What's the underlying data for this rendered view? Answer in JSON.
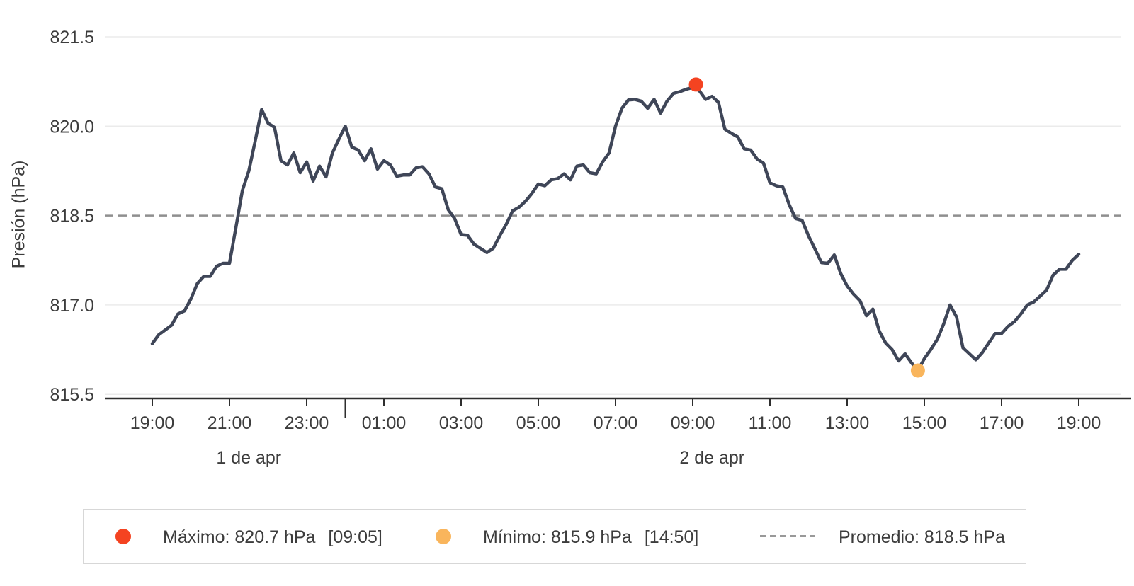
{
  "chart_data": {
    "type": "line",
    "title": "",
    "xlabel": "",
    "ylabel": "Presión (hPa)",
    "ylim": [
      815.5,
      821.5
    ],
    "yticks": [
      "821.5",
      "820.0",
      "818.5",
      "817.0",
      "815.5"
    ],
    "grid": true,
    "legend_position": "bottom",
    "xticks": [
      {
        "minute": 0,
        "label": "19:00"
      },
      {
        "minute": 120,
        "label": "21:00"
      },
      {
        "minute": 240,
        "label": "23:00"
      },
      {
        "minute": 360,
        "label": "01:00"
      },
      {
        "minute": 480,
        "label": "03:00"
      },
      {
        "minute": 600,
        "label": "05:00"
      },
      {
        "minute": 720,
        "label": "07:00"
      },
      {
        "minute": 840,
        "label": "09:00"
      },
      {
        "minute": 960,
        "label": "11:00"
      },
      {
        "minute": 1080,
        "label": "13:00"
      },
      {
        "minute": 1200,
        "label": "15:00"
      },
      {
        "minute": 1320,
        "label": "17:00"
      },
      {
        "minute": 1440,
        "label": "19:00"
      }
    ],
    "day_separator_minute": 300,
    "day_labels": [
      {
        "label": "1 de apr",
        "center_minute": 150
      },
      {
        "label": "2 de apr",
        "center_minute": 870
      }
    ],
    "series": {
      "name": "Presión",
      "start_time": "19:00",
      "interval_minutes": 10,
      "values": [
        816.35,
        816.5,
        816.58,
        816.66,
        816.85,
        816.9,
        817.1,
        817.36,
        817.48,
        817.48,
        817.65,
        817.7,
        817.7,
        818.3,
        818.92,
        819.25,
        819.75,
        820.28,
        820.05,
        819.98,
        819.42,
        819.35,
        819.55,
        819.22,
        819.4,
        819.08,
        819.33,
        819.15,
        819.55,
        819.78,
        820.0,
        819.65,
        819.6,
        819.42,
        819.62,
        819.28,
        819.42,
        819.35,
        819.16,
        819.18,
        819.18,
        819.3,
        819.32,
        819.2,
        818.98,
        818.95,
        818.6,
        818.45,
        818.18,
        818.17,
        818.02,
        817.95,
        817.88,
        817.95,
        818.16,
        818.35,
        818.58,
        818.64,
        818.74,
        818.87,
        819.03,
        819.0,
        819.1,
        819.12,
        819.2,
        819.1,
        819.33,
        819.35,
        819.22,
        819.2,
        819.4,
        819.55,
        820.0,
        820.3,
        820.44,
        820.45,
        820.42,
        820.3,
        820.45,
        820.22,
        820.42,
        820.55,
        820.58,
        820.62,
        820.65,
        820.6,
        820.45,
        820.5,
        820.4,
        819.95,
        819.88,
        819.82,
        819.62,
        819.6,
        819.45,
        819.38,
        819.05,
        819.0,
        818.98,
        818.68,
        818.45,
        818.42,
        818.16,
        817.94,
        817.71,
        817.7,
        817.84,
        817.53,
        817.32,
        817.18,
        817.07,
        816.82,
        816.93,
        816.56,
        816.36,
        816.25,
        816.06,
        816.18,
        816.03,
        815.9,
        816.1,
        816.25,
        816.42,
        816.68,
        817.0,
        816.8,
        816.28,
        816.18,
        816.08,
        816.2,
        816.36,
        816.52,
        816.52,
        816.64,
        816.72,
        816.85,
        817.0,
        817.05,
        817.15,
        817.25,
        817.5,
        817.6,
        817.6,
        817.75,
        817.85
      ]
    },
    "average": {
      "value": 818.5,
      "legend_label": "Promedio: 818.5 hPa"
    },
    "max": {
      "value": 820.7,
      "time": "09:05",
      "minute": 845,
      "legend_label": "Máximo: 820.7 hPa",
      "time_label": "[09:05]"
    },
    "min": {
      "value": 815.9,
      "time": "14:50",
      "minute": 1190,
      "legend_label": "Mínimo: 815.9 hPa",
      "time_label": "[14:50]"
    },
    "colors": {
      "line": "#3f4658",
      "max_marker": "#f44321",
      "min_marker": "#f9b55c",
      "average_line": "#8f8f8f",
      "grid": "#ebebeb",
      "axis": "#2e2e2e",
      "text": "#3c3c3c"
    }
  }
}
